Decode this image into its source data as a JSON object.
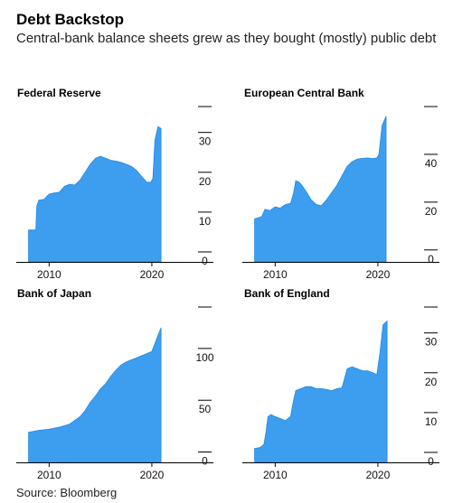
{
  "title": "Debt Backstop",
  "subtitle": "Central-bank balance sheets grew as they bought (mostly) public debt",
  "source": "Source: Bloomberg",
  "colors": {
    "area": "#3d9eef",
    "area_edge": "#1f88e5",
    "axis": "#000000"
  },
  "chart_data": [
    {
      "type": "area",
      "title": "Federal Reserve",
      "x_ticks": [
        2010,
        2020
      ],
      "y_ticks": [
        0,
        10,
        20,
        30
      ],
      "xlim": [
        2006.8,
        2023.0
      ],
      "ylim": [
        -2.5,
        36.5
      ],
      "x": [
        2008.0,
        2008.7,
        2008.8,
        2009.0,
        2009.5,
        2010.0,
        2010.5,
        2011.0,
        2011.5,
        2012.0,
        2012.5,
        2013.0,
        2013.5,
        2014.0,
        2014.5,
        2015.0,
        2015.5,
        2016.0,
        2016.5,
        2017.0,
        2017.5,
        2018.0,
        2018.5,
        2019.0,
        2019.5,
        2019.9,
        2020.1,
        2020.3,
        2020.6,
        2020.9
      ],
      "values": [
        5.5,
        5.5,
        11.5,
        13.0,
        13.2,
        14.5,
        14.8,
        15.0,
        16.5,
        17.0,
        16.8,
        18.0,
        20.0,
        22.0,
        23.5,
        24.0,
        23.5,
        23.0,
        22.8,
        22.5,
        22.0,
        21.5,
        20.5,
        19.0,
        17.5,
        17.5,
        18.5,
        28.0,
        31.5,
        31.0
      ]
    },
    {
      "type": "area",
      "title": "European Central Bank",
      "x_ticks": [
        2010,
        2020
      ],
      "y_ticks": [
        0,
        20,
        40
      ],
      "xlim": [
        2006.8,
        2023.0
      ],
      "ylim": [
        -5,
        60
      ],
      "x": [
        2008.0,
        2008.7,
        2009.0,
        2009.5,
        2010.0,
        2010.5,
        2011.0,
        2011.5,
        2011.8,
        2012.0,
        2012.3,
        2012.6,
        2013.0,
        2013.5,
        2014.0,
        2014.5,
        2015.0,
        2015.5,
        2016.0,
        2016.5,
        2017.0,
        2017.5,
        2018.0,
        2018.5,
        2019.0,
        2019.5,
        2019.9,
        2020.1,
        2020.4,
        2020.8
      ],
      "values": [
        13,
        14,
        17,
        16.5,
        18,
        17.5,
        19,
        19.5,
        24,
        29,
        28.5,
        27,
        24.5,
        21,
        19,
        18.5,
        21,
        24,
        27,
        31,
        35,
        37,
        38,
        38.3,
        38.5,
        38.2,
        38.5,
        40,
        52,
        56
      ]
    },
    {
      "type": "area",
      "title": "Bank of Japan",
      "x_ticks": [
        2010,
        2020
      ],
      "y_ticks": [
        0,
        50,
        100
      ],
      "xlim": [
        2006.8,
        2023.0
      ],
      "ylim": [
        -10,
        140
      ],
      "x": [
        2008.0,
        2009.0,
        2010.0,
        2011.0,
        2012.0,
        2013.0,
        2013.5,
        2014.0,
        2014.5,
        2015.0,
        2015.5,
        2016.0,
        2016.5,
        2017.0,
        2017.5,
        2018.0,
        2018.5,
        2019.0,
        2019.5,
        2020.0,
        2020.5,
        2020.9
      ],
      "values": [
        19,
        21,
        22,
        24,
        27,
        34,
        40,
        48,
        54,
        61,
        66,
        73,
        79,
        84,
        87,
        89,
        91,
        93,
        95,
        97,
        110,
        120
      ]
    },
    {
      "type": "area",
      "title": "Bank of England",
      "x_ticks": [
        2010,
        2020
      ],
      "y_ticks": [
        0,
        10,
        20,
        30
      ],
      "xlim": [
        2006.8,
        2023.0
      ],
      "ylim": [
        -2.5,
        36.5
      ],
      "x": [
        2008.0,
        2008.5,
        2008.9,
        2009.1,
        2009.3,
        2009.6,
        2010.0,
        2010.5,
        2011.0,
        2011.5,
        2011.7,
        2012.0,
        2012.5,
        2013.0,
        2013.5,
        2014.0,
        2014.5,
        2015.0,
        2015.5,
        2016.0,
        2016.5,
        2016.8,
        2017.0,
        2017.5,
        2018.0,
        2018.5,
        2019.0,
        2019.5,
        2019.9,
        2020.2,
        2020.5,
        2020.9
      ],
      "values": [
        1.0,
        1.2,
        2.0,
        5.0,
        9.0,
        9.5,
        9.0,
        8.5,
        8.0,
        9.0,
        12.0,
        15.5,
        16.0,
        16.5,
        16.5,
        16.0,
        16.0,
        15.8,
        15.5,
        16.0,
        16.2,
        19.0,
        21.0,
        21.5,
        21.0,
        20.5,
        20.5,
        20.0,
        19.5,
        25.0,
        32.0,
        33.0
      ]
    }
  ]
}
